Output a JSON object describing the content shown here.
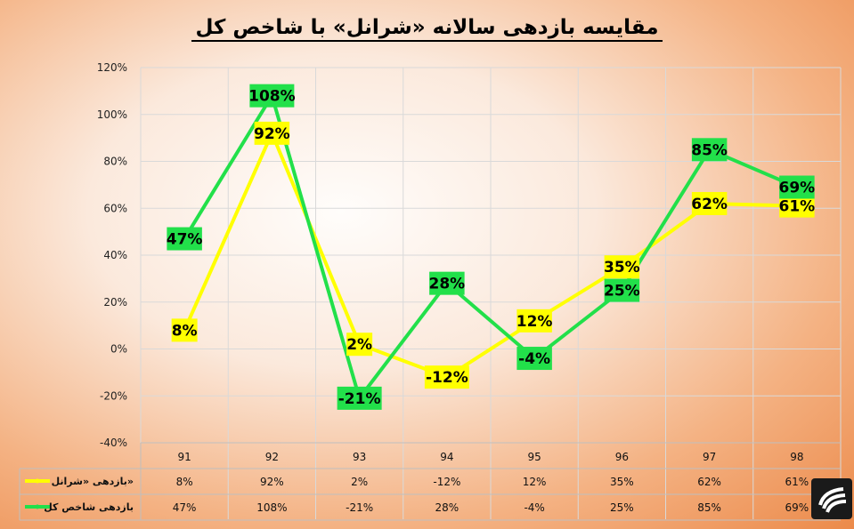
{
  "title": "مقایسه بازدهی سالانه «شرانل» با شاخص کل",
  "colors": {
    "shranol": "#ffff00",
    "index": "#22e04a",
    "grid": "#d9d9d9"
  },
  "chart_data": {
    "type": "line",
    "title": "مقایسه بازدهی سالانه «شرانل» با شاخص کل",
    "categories": [
      "91",
      "92",
      "93",
      "94",
      "95",
      "96",
      "97",
      "98"
    ],
    "yticks": [
      "120%",
      "100%",
      "80%",
      "60%",
      "40%",
      "20%",
      "0%",
      "-20%",
      "-40%"
    ],
    "ylim": [
      -40,
      120
    ],
    "grid": true,
    "legend_placement": "table-left",
    "series": [
      {
        "name": "بازدهی «شرانل»",
        "color": "#ffff00",
        "values": [
          8,
          92,
          2,
          -12,
          12,
          35,
          62,
          61
        ],
        "labels": [
          "8%",
          "92%",
          "2%",
          "-12%",
          "12%",
          "35%",
          "62%",
          "61%"
        ]
      },
      {
        "name": "بازدهی شاخص کل",
        "color": "#22e04a",
        "values": [
          47,
          108,
          -21,
          28,
          -4,
          25,
          85,
          69
        ],
        "labels": [
          "47%",
          "108%",
          "-21%",
          "28%",
          "-4%",
          "25%",
          "85%",
          "69%"
        ]
      }
    ]
  },
  "logo": "company-logo"
}
